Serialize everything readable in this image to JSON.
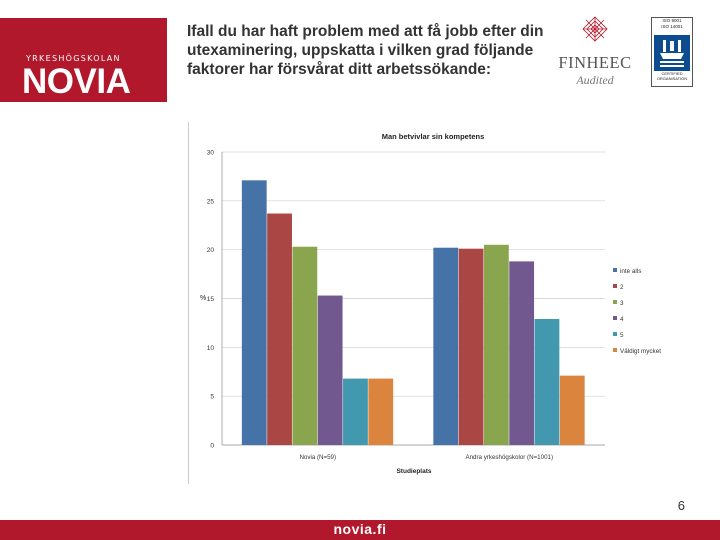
{
  "logo": {
    "subtitle": "YRKESHÖGSKOLAN",
    "name": "NOVIA"
  },
  "title": "Ifall du har haft problem med att få jobb efter din utexaminering, uppskatta i vilken grad följande faktorer har försvårat ditt arbetssökande:",
  "finheec": {
    "name": "FINHEEC",
    "audited": "Audited"
  },
  "dnv": {
    "top": "ISO 9001\nISO 14001",
    "bottom": "CERTIFIED\nORGANISATION"
  },
  "page_number": "6",
  "footer": {
    "url": "novia.fi"
  },
  "colors": {
    "brand": "#b2182b",
    "s1": "#4572a7",
    "s2": "#aa4643",
    "s3": "#89a54e",
    "s4": "#71588f",
    "s5": "#4198af",
    "s6": "#db843d"
  },
  "chart_data": {
    "type": "bar",
    "title": "Man betvivlar sin kompetens",
    "xlabel": "Studieplats",
    "ylabel": "%",
    "ylim": [
      0,
      30
    ],
    "yticks": [
      "0",
      "5",
      "10",
      "15",
      "20",
      "25",
      "30"
    ],
    "categories": [
      "Novia (N=59)",
      "Andra yrkeshögskolor (N=1001)"
    ],
    "legend_position": "right",
    "series": [
      {
        "name": "inte alls",
        "color": "#4572a7",
        "values": [
          27.1,
          20.2
        ]
      },
      {
        "name": "2",
        "color": "#aa4643",
        "values": [
          23.7,
          20.1
        ]
      },
      {
        "name": "3",
        "color": "#89a54e",
        "values": [
          20.3,
          20.5
        ]
      },
      {
        "name": "4",
        "color": "#71588f",
        "values": [
          15.3,
          18.8
        ]
      },
      {
        "name": "5",
        "color": "#4198af",
        "values": [
          6.8,
          12.9
        ]
      },
      {
        "name": "Väldigt mycket",
        "color": "#db843d",
        "values": [
          6.8,
          7.1
        ]
      }
    ]
  }
}
